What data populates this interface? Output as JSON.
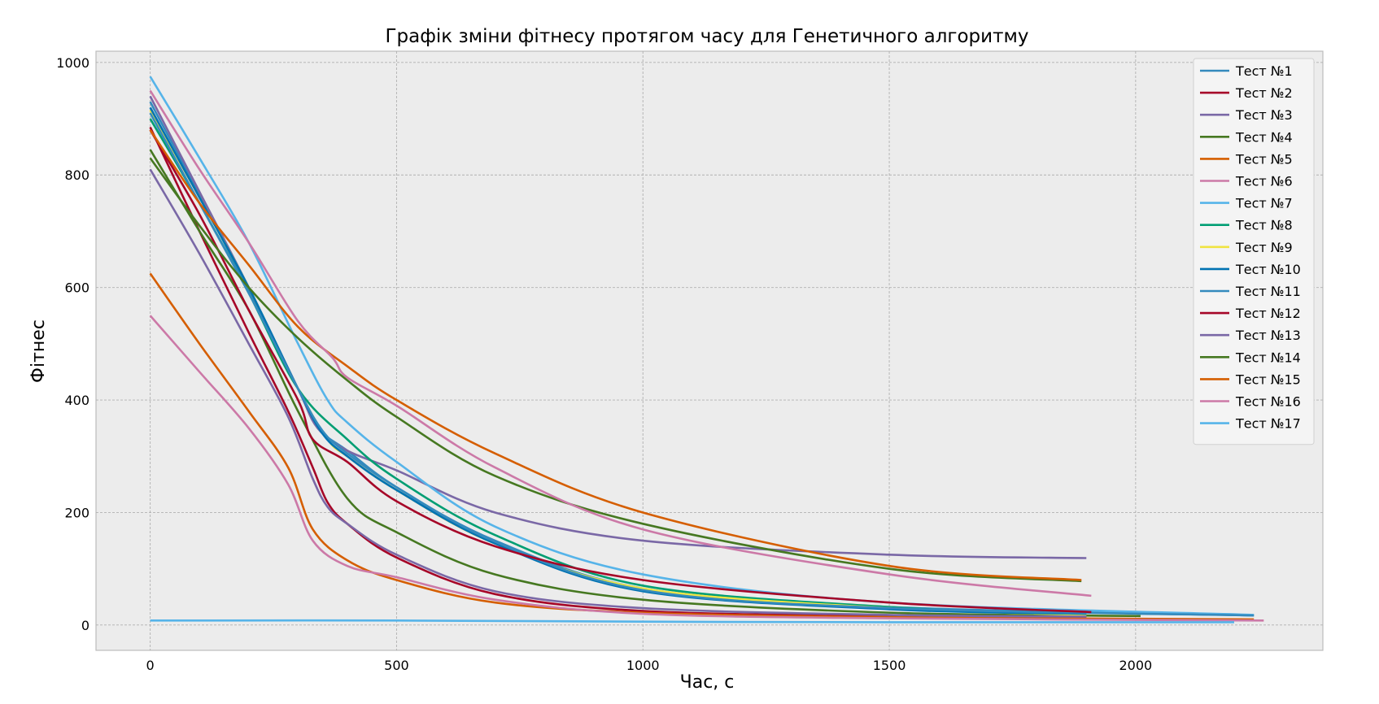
{
  "chart_data": {
    "type": "line",
    "title": "Графік зміни фітнесу протягом часу для Генетичного алгоритму",
    "xlabel": "Час, с",
    "ylabel": "Фітнес",
    "xlim": [
      -110,
      2380
    ],
    "ylim": [
      -45,
      1020
    ],
    "x_ticks": [
      0,
      500,
      1000,
      1500,
      2000
    ],
    "y_ticks": [
      0,
      200,
      400,
      600,
      800,
      1000
    ],
    "x_tick_labels": [
      "0",
      "500",
      "1000",
      "1500",
      "2000"
    ],
    "y_tick_labels": [
      "0",
      "200",
      "400",
      "600",
      "800",
      "1000"
    ],
    "grid": true,
    "legend_position": "top-right",
    "background": "#ececec",
    "series": [
      {
        "name": "Тест №1",
        "color": "#348abd",
        "x": [
          0,
          100,
          200,
          300,
          340,
          400,
          500,
          700,
          1000,
          1500,
          2240
        ],
        "y": [
          930,
          765,
          595,
          420,
          350,
          310,
          245,
          150,
          65,
          32,
          17
        ]
      },
      {
        "name": "Тест №2",
        "color": "#a60628",
        "x": [
          0,
          100,
          200,
          280,
          330,
          360,
          400,
          500,
          700,
          1000,
          1500,
          1900
        ],
        "y": [
          885,
          700,
          520,
          380,
          280,
          218,
          180,
          120,
          55,
          25,
          16,
          14
        ]
      },
      {
        "name": "Тест №3",
        "color": "#7a68a6",
        "x": [
          0,
          100,
          200,
          300,
          340,
          400,
          500,
          700,
          1000,
          1500,
          1900
        ],
        "y": [
          940,
          770,
          600,
          420,
          350,
          310,
          275,
          200,
          150,
          125,
          119
        ]
      },
      {
        "name": "Тест №4",
        "color": "#467821",
        "x": [
          0,
          100,
          200,
          300,
          400,
          500,
          700,
          1000,
          1500,
          2010
        ],
        "y": [
          845,
          700,
          560,
          380,
          225,
          165,
          90,
          45,
          22,
          16
        ]
      },
      {
        "name": "Тест №5",
        "color": "#d55e00",
        "x": [
          0,
          100,
          200,
          280,
          330,
          400,
          500,
          700,
          1000,
          1500,
          2240
        ],
        "y": [
          625,
          500,
          380,
          280,
          170,
          115,
          80,
          40,
          22,
          14,
          10
        ]
      },
      {
        "name": "Тест №6",
        "color": "#cc79a7",
        "x": [
          0,
          100,
          200,
          280,
          330,
          400,
          500,
          700,
          1000,
          1500,
          2260
        ],
        "y": [
          550,
          450,
          350,
          250,
          150,
          105,
          85,
          45,
          20,
          12,
          8
        ]
      },
      {
        "name": "Тест №7",
        "color": "#56b4e9",
        "x": [
          0,
          100,
          200,
          300,
          360,
          400,
          500,
          700,
          1000,
          1500,
          2240
        ],
        "y": [
          975,
          830,
          680,
          500,
          400,
          360,
          290,
          175,
          90,
          40,
          18
        ]
      },
      {
        "name": "Тест №8",
        "color": "#009e73",
        "x": [
          0,
          100,
          200,
          300,
          400,
          500,
          700,
          1000,
          1500,
          1900
        ],
        "y": [
          900,
          750,
          590,
          420,
          330,
          260,
          160,
          70,
          32,
          18
        ]
      },
      {
        "name": "Тест №9",
        "color": "#f0e442",
        "x": [
          0,
          100,
          200,
          300,
          360,
          400,
          500,
          700,
          1000,
          1500,
          1900
        ],
        "y": [
          915,
          760,
          600,
          420,
          330,
          300,
          240,
          145,
          65,
          30,
          18
        ]
      },
      {
        "name": "Тест №10",
        "color": "#0072b2",
        "x": [
          0,
          100,
          200,
          300,
          350,
          400,
          500,
          700,
          1000,
          1500,
          1900
        ],
        "y": [
          920,
          760,
          600,
          420,
          340,
          300,
          240,
          145,
          60,
          28,
          20
        ]
      },
      {
        "name": "Тест №11",
        "color": "#348abd",
        "x": [
          0,
          100,
          200,
          300,
          350,
          400,
          500,
          700,
          1000,
          1500,
          2240
        ],
        "y": [
          910,
          750,
          590,
          420,
          345,
          305,
          245,
          148,
          62,
          30,
          17
        ]
      },
      {
        "name": "Тест №12",
        "color": "#a60628",
        "x": [
          0,
          100,
          200,
          300,
          330,
          400,
          500,
          700,
          1000,
          1500,
          1910
        ],
        "y": [
          880,
          730,
          560,
          400,
          330,
          290,
          220,
          140,
          80,
          40,
          23
        ]
      },
      {
        "name": "Тест №13",
        "color": "#7a68a6",
        "x": [
          0,
          100,
          200,
          280,
          330,
          360,
          400,
          500,
          700,
          1000,
          1500,
          1900
        ],
        "y": [
          810,
          660,
          500,
          370,
          260,
          210,
          180,
          125,
          60,
          30,
          18,
          15
        ]
      },
      {
        "name": "Тест №14",
        "color": "#467821",
        "x": [
          0,
          100,
          200,
          300,
          400,
          500,
          700,
          1000,
          1500,
          1890
        ],
        "y": [
          830,
          710,
          600,
          510,
          435,
          370,
          265,
          180,
          100,
          78
        ]
      },
      {
        "name": "Тест №15",
        "color": "#d55e00",
        "x": [
          0,
          100,
          200,
          300,
          400,
          500,
          700,
          1000,
          1500,
          1890
        ],
        "y": [
          880,
          750,
          640,
          530,
          460,
          400,
          305,
          200,
          105,
          80
        ]
      },
      {
        "name": "Тест №16",
        "color": "#cc79a7",
        "x": [
          0,
          100,
          200,
          300,
          370,
          400,
          500,
          700,
          1000,
          1500,
          1910
        ],
        "y": [
          950,
          810,
          680,
          540,
          475,
          440,
          390,
          280,
          170,
          90,
          52
        ]
      },
      {
        "name": "Тест №17",
        "color": "#56b4e9",
        "x": [
          0,
          500,
          1000,
          1500,
          2200
        ],
        "y": [
          8,
          8,
          6,
          5,
          5
        ]
      }
    ]
  }
}
